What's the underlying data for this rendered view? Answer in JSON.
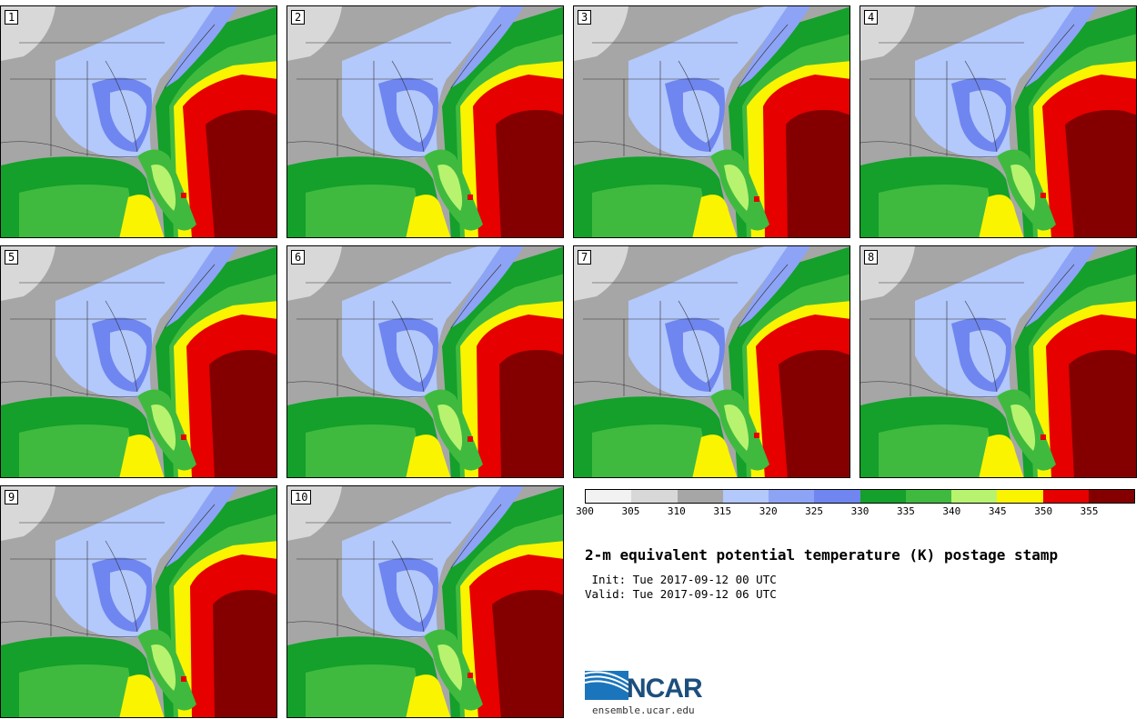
{
  "panels": [
    {
      "label": "1"
    },
    {
      "label": "2"
    },
    {
      "label": "3"
    },
    {
      "label": "4"
    },
    {
      "label": "5"
    },
    {
      "label": "6"
    },
    {
      "label": "7"
    },
    {
      "label": "8"
    },
    {
      "label": "9"
    },
    {
      "label": "10"
    }
  ],
  "colorbar": {
    "colors": [
      "#f2f2f2",
      "#d8d8d8",
      "#a6a6a6",
      "#b3c8fb",
      "#8da3f5",
      "#6f86f0",
      "#14a02a",
      "#3fba3f",
      "#b7f36f",
      "#fbf400",
      "#e60000",
      "#840000"
    ],
    "ticks": [
      "300",
      "305",
      "310",
      "315",
      "320",
      "325",
      "330",
      "335",
      "340",
      "345",
      "350",
      "355"
    ]
  },
  "title": "2-m equivalent potential temperature (K) postage stamp",
  "init_line": " Init: Tue 2017-09-12 00 UTC",
  "valid_line": "Valid: Tue 2017-09-12 06 UTC",
  "logo": {
    "word": "NCAR",
    "url": "ensemble.ucar.edu"
  }
}
